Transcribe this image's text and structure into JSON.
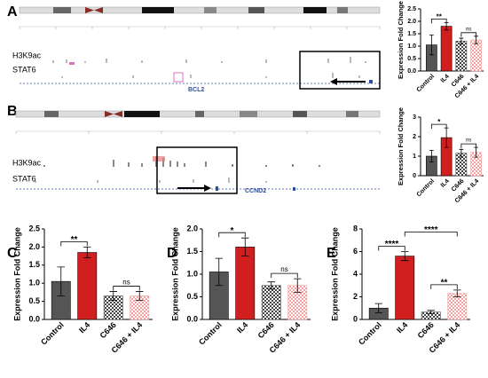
{
  "panel_labels": [
    "A",
    "B",
    "C",
    "D",
    "E"
  ],
  "genome_tracks": [
    {
      "tracks": [
        "H3K9ac",
        "STAT6"
      ],
      "gene": "BCL2"
    },
    {
      "tracks": [
        "H3K9ac",
        "STAT6"
      ],
      "gene": "CCND2"
    }
  ],
  "chart_data": [
    {
      "type": "bar",
      "y_label": "Expression Fold Change",
      "categories": [
        "Control",
        "IL4",
        "C646",
        "C646 + IL4"
      ],
      "values": [
        1.05,
        1.8,
        1.2,
        1.25
      ],
      "errors": [
        0.4,
        0.15,
        0.12,
        0.15
      ],
      "colors": [
        "#555555",
        "#d11f1f",
        "#444444",
        "#f2a0a0"
      ],
      "patterned": [
        false,
        false,
        true,
        true
      ],
      "ylim": [
        0,
        2.5
      ],
      "yticks": [
        {
          "value": 0,
          "label": "0.0"
        },
        0.5,
        {
          "value": 1,
          "label": "1.0"
        },
        1.5,
        {
          "value": 2,
          "label": "2.0"
        },
        2.5
      ],
      "comparisons": [
        {
          "pair": [
            0,
            1
          ],
          "label": "**"
        },
        {
          "pair": [
            2,
            3
          ],
          "label": "ns"
        }
      ]
    },
    {
      "type": "bar",
      "y_label": "Expression Fold Change",
      "categories": [
        "Control",
        "IL4",
        "C646",
        "C646 + IL4"
      ],
      "values": [
        1.0,
        1.95,
        1.15,
        1.2
      ],
      "errors": [
        0.3,
        0.5,
        0.2,
        0.25
      ],
      "colors": [
        "#555555",
        "#d11f1f",
        "#444444",
        "#f2a0a0"
      ],
      "patterned": [
        false,
        false,
        true,
        true
      ],
      "ylim": [
        0,
        3
      ],
      "yticks": [
        0,
        1,
        2,
        3
      ],
      "comparisons": [
        {
          "pair": [
            0,
            1
          ],
          "label": "*"
        },
        {
          "pair": [
            2,
            3
          ],
          "label": "ns"
        }
      ]
    },
    {
      "type": "bar",
      "y_label": "Expression Fold Change",
      "categories": [
        "Control",
        "IL4",
        "C646",
        "C646 + IL4"
      ],
      "values": [
        1.05,
        1.85,
        0.65,
        0.65
      ],
      "errors": [
        0.4,
        0.15,
        0.12,
        0.12
      ],
      "colors": [
        "#555555",
        "#d11f1f",
        "#444444",
        "#f2a0a0"
      ],
      "patterned": [
        false,
        false,
        true,
        true
      ],
      "ylim": [
        0,
        2.5
      ],
      "yticks": [
        {
          "value": 0,
          "label": "0.0"
        },
        0.5,
        {
          "value": 1,
          "label": "1.0"
        },
        1.5,
        {
          "value": 2,
          "label": "2.0"
        },
        2.5
      ],
      "comparisons": [
        {
          "pair": [
            0,
            1
          ],
          "label": "**"
        },
        {
          "pair": [
            2,
            3
          ],
          "label": "ns"
        }
      ]
    },
    {
      "type": "bar",
      "y_label": "Expression Fold Change",
      "categories": [
        "Control",
        "IL4",
        "C646",
        "C646 + IL4"
      ],
      "values": [
        1.05,
        1.6,
        0.75,
        0.75
      ],
      "errors": [
        0.3,
        0.2,
        0.08,
        0.15
      ],
      "colors": [
        "#555555",
        "#d11f1f",
        "#444444",
        "#f2a0a0"
      ],
      "patterned": [
        false,
        false,
        true,
        true
      ],
      "ylim": [
        0,
        2
      ],
      "yticks": [
        {
          "value": 0,
          "label": "0.0"
        },
        0.5,
        {
          "value": 1,
          "label": "1.0"
        },
        1.5,
        {
          "value": 2,
          "label": "2.0"
        }
      ],
      "comparisons": [
        {
          "pair": [
            0,
            1
          ],
          "label": "*"
        },
        {
          "pair": [
            2,
            3
          ],
          "label": "ns"
        }
      ]
    },
    {
      "type": "bar",
      "y_label": "Expression Fold Change",
      "categories": [
        "Control",
        "IL4",
        "C646",
        "C646 + IL4"
      ],
      "values": [
        1.0,
        5.6,
        0.65,
        2.3
      ],
      "errors": [
        0.4,
        0.4,
        0.15,
        0.3
      ],
      "colors": [
        "#555555",
        "#d11f1f",
        "#444444",
        "#f2a0a0"
      ],
      "patterned": [
        false,
        false,
        true,
        true
      ],
      "ylim": [
        0,
        8
      ],
      "yticks": [
        0,
        2,
        4,
        6,
        8
      ],
      "comparisons": [
        {
          "pair": [
            0,
            1
          ],
          "label": "****"
        },
        {
          "pair": [
            2,
            3
          ],
          "label": "**"
        },
        {
          "pair": [
            1,
            3
          ],
          "label": "****"
        }
      ]
    }
  ]
}
